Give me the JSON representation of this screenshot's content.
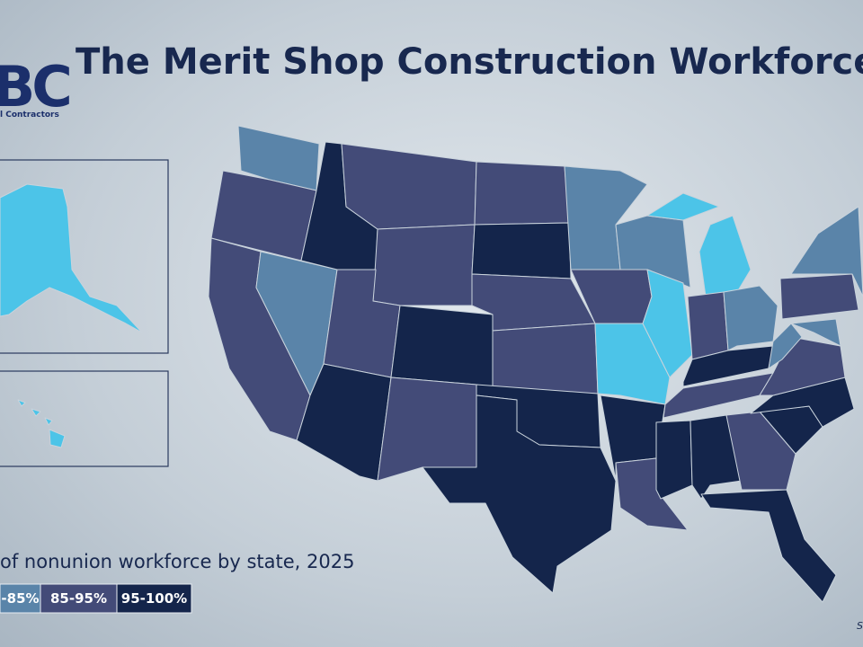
{
  "header": {
    "title": "The Merit Shop Construction Workforce",
    "logo_text": "BC",
    "logo_subtitle": "l Contractors"
  },
  "legend": {
    "title": "of nonunion workforce by state, 2025",
    "items": [
      {
        "label": "-85%",
        "color": "#5a84a9"
      },
      {
        "label": "85-95%",
        "color": "#434b78"
      },
      {
        "label": "95-100%",
        "color": "#14254b"
      }
    ]
  },
  "footer": {
    "source": "S"
  }
}
